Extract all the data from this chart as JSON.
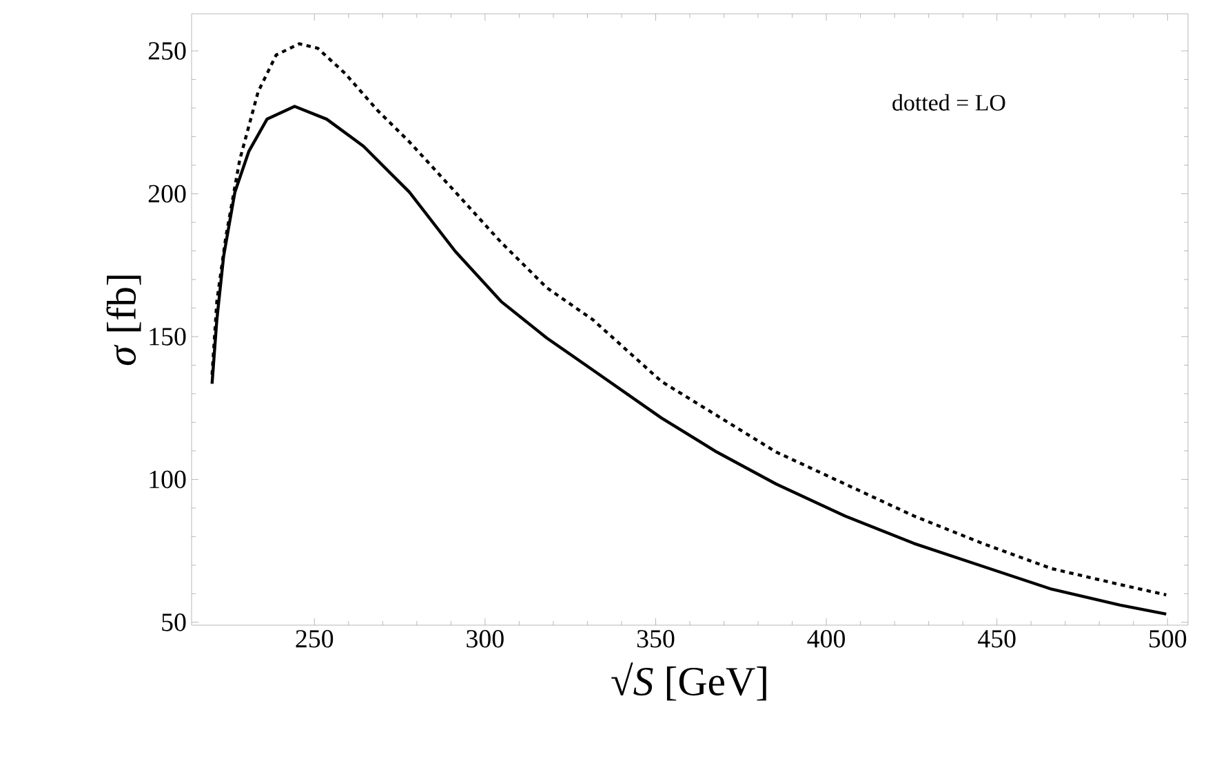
{
  "chart_data": {
    "type": "line",
    "xlabel": "√*S* [GeV]",
    "ylabel": "*σ* [fb]",
    "annotations": [
      "dotted = LO"
    ],
    "xlim": [
      214,
      506
    ],
    "ylim": [
      49,
      263
    ],
    "xticks": [
      250,
      300,
      350,
      400,
      450,
      500
    ],
    "yticks": [
      50,
      100,
      150,
      200,
      250
    ],
    "grid": false,
    "series": [
      {
        "color": "#000000",
        "line_style": "solid",
        "x": [
          220.0,
          221.4,
          223.4,
          226.7,
          230.8,
          236.1,
          244.2,
          253.6,
          264.4,
          277.8,
          291.3,
          304.7,
          318.1,
          331.6,
          351.7,
          367.9,
          385.3,
          405.5,
          425.7,
          445.8,
          466.0,
          486.1,
          499.6
        ],
        "values": [
          133.5,
          155.9,
          178.2,
          200.6,
          214.9,
          226.1,
          230.6,
          226.1,
          216.6,
          200.6,
          179.8,
          162.3,
          149.5,
          138.3,
          121.5,
          109.6,
          98.4,
          87.2,
          77.6,
          69.6,
          61.6,
          56.0,
          52.9
        ]
      },
      {
        "color": "#000000",
        "line_style": "dotted",
        "x": [
          220.0,
          221.4,
          224.0,
          228.1,
          233.5,
          238.8,
          245.6,
          251.0,
          259.0,
          268.4,
          277.8,
          291.3,
          304.7,
          318.1,
          331.6,
          351.7,
          367.9,
          385.3,
          405.5,
          425.7,
          445.8,
          466.0,
          486.1,
          499.6
        ],
        "values": [
          136.7,
          162.3,
          184.6,
          211.8,
          235.7,
          248.6,
          252.5,
          250.9,
          242.1,
          229.3,
          218.2,
          200.6,
          183.0,
          167.1,
          155.9,
          134.3,
          122.4,
          109.6,
          98.4,
          87.2,
          77.6,
          68.8,
          63.2,
          59.6
        ]
      }
    ]
  }
}
